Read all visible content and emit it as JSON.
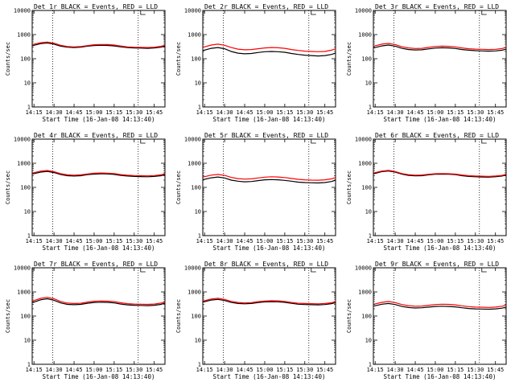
{
  "common": {
    "xlabel": "Start Time (16-Jan-08 14:13:40)",
    "ylabel": "Counts/sec",
    "x_tick_labels": [
      "14:15",
      "14:30",
      "14:45",
      "15:00",
      "15:15",
      "15:30",
      "15:45"
    ],
    "y_tick_labels": [
      "1",
      "10",
      "100",
      "1000",
      "10000"
    ],
    "colors": {
      "events": "#000000",
      "lld": "#ff0000",
      "frame": "#000000"
    }
  },
  "chart_data": [
    {
      "type": "line",
      "title": "Det 1r BLACK = Events, RED = LLD",
      "xlabel": "Start Time (16-Jan-08 14:13:40)",
      "ylabel": "Counts/sec",
      "y_scale": "log",
      "ylim": [
        1,
        10000
      ],
      "xlim": [
        "14:13:40",
        "15:53"
      ],
      "x_ticks": [
        "14:15",
        "14:30",
        "14:45",
        "15:00",
        "15:15",
        "15:30",
        "15:45"
      ],
      "y_ticks": [
        1,
        10,
        100,
        1000,
        10000
      ],
      "vlines": [
        "14:29",
        "15:33"
      ],
      "x": [
        "14:14",
        "14:20",
        "14:25",
        "14:30",
        "14:35",
        "14:40",
        "14:45",
        "14:50",
        "14:55",
        "15:00",
        "15:05",
        "15:10",
        "15:15",
        "15:20",
        "15:25",
        "15:30",
        "15:35",
        "15:40",
        "15:45",
        "15:50",
        "15:53"
      ],
      "series": [
        {
          "name": "Events",
          "values": [
            350,
            420,
            450,
            400,
            330,
            300,
            290,
            300,
            330,
            350,
            360,
            355,
            340,
            310,
            290,
            280,
            275,
            270,
            280,
            300,
            330
          ]
        },
        {
          "name": "LLD",
          "values": [
            390,
            460,
            490,
            440,
            360,
            320,
            310,
            320,
            350,
            380,
            390,
            385,
            370,
            335,
            310,
            300,
            295,
            290,
            300,
            325,
            360
          ]
        }
      ]
    },
    {
      "type": "line",
      "title": "Det 2r BLACK = Events, RED = LLD",
      "xlabel": "Start Time (16-Jan-08 14:13:40)",
      "ylabel": "Counts/sec",
      "y_scale": "log",
      "ylim": [
        1,
        10000
      ],
      "xlim": [
        "14:13:40",
        "15:53"
      ],
      "x_ticks": [
        "14:15",
        "14:30",
        "14:45",
        "15:00",
        "15:15",
        "15:30",
        "15:45"
      ],
      "y_ticks": [
        1,
        10,
        100,
        1000,
        10000
      ],
      "vlines": [
        "14:29",
        "15:33"
      ],
      "x": [
        "14:14",
        "14:20",
        "14:25",
        "14:30",
        "14:35",
        "14:40",
        "14:45",
        "14:50",
        "14:55",
        "15:00",
        "15:05",
        "15:10",
        "15:15",
        "15:20",
        "15:25",
        "15:30",
        "15:35",
        "15:40",
        "15:45",
        "15:50",
        "15:53"
      ],
      "series": [
        {
          "name": "Events",
          "values": [
            220,
            270,
            290,
            260,
            200,
            170,
            160,
            165,
            180,
            195,
            200,
            195,
            185,
            165,
            150,
            140,
            135,
            130,
            135,
            150,
            170
          ]
        },
        {
          "name": "LLD",
          "values": [
            300,
            370,
            400,
            360,
            290,
            250,
            235,
            240,
            260,
            280,
            290,
            285,
            270,
            240,
            220,
            205,
            200,
            195,
            200,
            225,
            260
          ]
        }
      ]
    },
    {
      "type": "line",
      "title": "Det 3r BLACK = Events, RED = LLD",
      "xlabel": "Start Time (16-Jan-08 14:13:40)",
      "ylabel": "Counts/sec",
      "y_scale": "log",
      "ylim": [
        1,
        10000
      ],
      "xlim": [
        "14:13:40",
        "15:53"
      ],
      "x_ticks": [
        "14:15",
        "14:30",
        "14:45",
        "15:00",
        "15:15",
        "15:30",
        "15:45"
      ],
      "y_ticks": [
        1,
        10,
        100,
        1000,
        10000
      ],
      "vlines": [
        "14:29",
        "15:33"
      ],
      "x": [
        "14:14",
        "14:20",
        "14:25",
        "14:30",
        "14:35",
        "14:40",
        "14:45",
        "14:50",
        "14:55",
        "15:00",
        "15:05",
        "15:10",
        "15:15",
        "15:20",
        "15:25",
        "15:30",
        "15:35",
        "15:40",
        "15:45",
        "15:50",
        "15:53"
      ],
      "series": [
        {
          "name": "Events",
          "values": [
            280,
            340,
            370,
            330,
            270,
            240,
            230,
            235,
            255,
            275,
            285,
            280,
            265,
            240,
            225,
            215,
            210,
            205,
            210,
            225,
            250
          ]
        },
        {
          "name": "LLD",
          "values": [
            330,
            400,
            430,
            385,
            315,
            280,
            265,
            270,
            295,
            320,
            330,
            325,
            310,
            280,
            260,
            250,
            245,
            240,
            245,
            265,
            295
          ]
        }
      ]
    },
    {
      "type": "line",
      "title": "Det 4r BLACK = Events, RED = LLD",
      "xlabel": "Start Time (16-Jan-08 14:13:40)",
      "ylabel": "Counts/sec",
      "y_scale": "log",
      "ylim": [
        1,
        10000
      ],
      "xlim": [
        "14:13:40",
        "15:53"
      ],
      "x_ticks": [
        "14:15",
        "14:30",
        "14:45",
        "15:00",
        "15:15",
        "15:30",
        "15:45"
      ],
      "y_ticks": [
        1,
        10,
        100,
        1000,
        10000
      ],
      "vlines": [
        "14:29",
        "15:33"
      ],
      "x": [
        "14:14",
        "14:20",
        "14:25",
        "14:30",
        "14:35",
        "14:40",
        "14:45",
        "14:50",
        "14:55",
        "15:00",
        "15:05",
        "15:10",
        "15:15",
        "15:20",
        "15:25",
        "15:30",
        "15:35",
        "15:40",
        "15:45",
        "15:50",
        "15:53"
      ],
      "series": [
        {
          "name": "Events",
          "values": [
            360,
            430,
            460,
            410,
            340,
            305,
            295,
            305,
            335,
            355,
            365,
            360,
            345,
            315,
            295,
            285,
            280,
            275,
            285,
            305,
            335
          ]
        },
        {
          "name": "LLD",
          "values": [
            395,
            470,
            500,
            450,
            370,
            330,
            320,
            330,
            360,
            385,
            395,
            390,
            375,
            340,
            320,
            310,
            305,
            300,
            310,
            330,
            365
          ]
        }
      ]
    },
    {
      "type": "line",
      "title": "Det 5r BLACK = Events, RED = LLD",
      "xlabel": "Start Time (16-Jan-08 14:13:40)",
      "ylabel": "Counts/sec",
      "y_scale": "log",
      "ylim": [
        1,
        10000
      ],
      "xlim": [
        "14:13:40",
        "15:53"
      ],
      "x_ticks": [
        "14:15",
        "14:30",
        "14:45",
        "15:00",
        "15:15",
        "15:30",
        "15:45"
      ],
      "y_ticks": [
        1,
        10,
        100,
        1000,
        10000
      ],
      "vlines": [
        "14:29",
        "15:33"
      ],
      "x": [
        "14:14",
        "14:20",
        "14:25",
        "14:30",
        "14:35",
        "14:40",
        "14:45",
        "14:50",
        "14:55",
        "15:00",
        "15:05",
        "15:10",
        "15:15",
        "15:20",
        "15:25",
        "15:30",
        "15:35",
        "15:40",
        "15:45",
        "15:50",
        "15:53"
      ],
      "series": [
        {
          "name": "Events",
          "values": [
            210,
            250,
            270,
            245,
            200,
            180,
            170,
            175,
            190,
            205,
            210,
            205,
            195,
            180,
            165,
            158,
            155,
            152,
            158,
            175,
            200
          ]
        },
        {
          "name": "LLD",
          "values": [
            270,
            320,
            345,
            315,
            260,
            230,
            220,
            225,
            245,
            265,
            275,
            270,
            255,
            235,
            215,
            205,
            200,
            198,
            205,
            225,
            255
          ]
        }
      ]
    },
    {
      "type": "line",
      "title": "Det 6r BLACK = Events, RED = LLD",
      "xlabel": "Start Time (16-Jan-08 14:13:40)",
      "ylabel": "Counts/sec",
      "y_scale": "log",
      "ylim": [
        1,
        10000
      ],
      "xlim": [
        "14:13:40",
        "15:53"
      ],
      "x_ticks": [
        "14:15",
        "14:30",
        "14:45",
        "15:00",
        "15:15",
        "15:30",
        "15:45"
      ],
      "y_ticks": [
        1,
        10,
        100,
        1000,
        10000
      ],
      "vlines": [
        "14:29",
        "15:33"
      ],
      "x": [
        "14:14",
        "14:20",
        "14:25",
        "14:30",
        "14:35",
        "14:40",
        "14:45",
        "14:50",
        "14:55",
        "15:00",
        "15:05",
        "15:10",
        "15:15",
        "15:20",
        "15:25",
        "15:30",
        "15:35",
        "15:40",
        "15:45",
        "15:50",
        "15:53"
      ],
      "series": [
        {
          "name": "Events",
          "values": [
            370,
            450,
            480,
            430,
            355,
            315,
            300,
            305,
            330,
            350,
            355,
            350,
            335,
            305,
            285,
            275,
            270,
            265,
            275,
            295,
            330
          ]
        },
        {
          "name": "LLD",
          "values": [
            395,
            475,
            505,
            455,
            375,
            335,
            320,
            325,
            350,
            370,
            375,
            370,
            355,
            325,
            305,
            295,
            290,
            285,
            295,
            315,
            350
          ]
        }
      ]
    },
    {
      "type": "line",
      "title": "Det 7r BLACK = Events, RED = LLD",
      "xlabel": "Start Time (16-Jan-08 14:13:40)",
      "ylabel": "Counts/sec",
      "y_scale": "log",
      "ylim": [
        1,
        10000
      ],
      "xlim": [
        "14:13:40",
        "15:53"
      ],
      "x_ticks": [
        "14:15",
        "14:30",
        "14:45",
        "15:00",
        "15:15",
        "15:30",
        "15:45"
      ],
      "y_ticks": [
        1,
        10,
        100,
        1000,
        10000
      ],
      "vlines": [
        "14:29",
        "15:33"
      ],
      "x": [
        "14:14",
        "14:20",
        "14:25",
        "14:30",
        "14:35",
        "14:40",
        "14:45",
        "14:50",
        "14:55",
        "15:00",
        "15:05",
        "15:10",
        "15:15",
        "15:20",
        "15:25",
        "15:30",
        "15:35",
        "15:40",
        "15:45",
        "15:50",
        "15:53"
      ],
      "series": [
        {
          "name": "Events",
          "values": [
            360,
            470,
            520,
            450,
            350,
            305,
            295,
            305,
            340,
            365,
            375,
            370,
            350,
            315,
            290,
            280,
            275,
            270,
            280,
            305,
            345
          ]
        },
        {
          "name": "LLD",
          "values": [
            420,
            540,
            600,
            520,
            400,
            345,
            330,
            340,
            380,
            410,
            420,
            415,
            395,
            355,
            325,
            315,
            310,
            305,
            315,
            345,
            390
          ]
        }
      ]
    },
    {
      "type": "line",
      "title": "Det 8r BLACK = Events, RED = LLD",
      "xlabel": "Start Time (16-Jan-08 14:13:40)",
      "ylabel": "Counts/sec",
      "y_scale": "log",
      "ylim": [
        1,
        10000
      ],
      "xlim": [
        "14:13:40",
        "15:53"
      ],
      "x_ticks": [
        "14:15",
        "14:30",
        "14:45",
        "15:00",
        "15:15",
        "15:30",
        "15:45"
      ],
      "y_ticks": [
        1,
        10,
        100,
        1000,
        10000
      ],
      "vlines": [
        "14:29",
        "15:33"
      ],
      "x": [
        "14:14",
        "14:20",
        "14:25",
        "14:30",
        "14:35",
        "14:40",
        "14:45",
        "14:50",
        "14:55",
        "15:00",
        "15:05",
        "15:10",
        "15:15",
        "15:20",
        "15:25",
        "15:30",
        "15:35",
        "15:40",
        "15:45",
        "15:50",
        "15:53"
      ],
      "series": [
        {
          "name": "Events",
          "values": [
            380,
            460,
            490,
            440,
            365,
            330,
            320,
            330,
            360,
            385,
            395,
            390,
            370,
            335,
            310,
            300,
            295,
            290,
            300,
            325,
            360
          ]
        },
        {
          "name": "LLD",
          "values": [
            420,
            510,
            545,
            490,
            405,
            365,
            350,
            360,
            395,
            420,
            430,
            425,
            405,
            365,
            340,
            330,
            325,
            320,
            330,
            355,
            395
          ]
        }
      ]
    },
    {
      "type": "line",
      "title": "Det 9r BLACK = Events, RED = LLD",
      "xlabel": "Start Time (16-Jan-08 14:13:40)",
      "ylabel": "Counts/sec",
      "y_scale": "log",
      "ylim": [
        1,
        10000
      ],
      "xlim": [
        "14:13:40",
        "15:53"
      ],
      "x_ticks": [
        "14:15",
        "14:30",
        "14:45",
        "15:00",
        "15:15",
        "15:30",
        "15:45"
      ],
      "y_ticks": [
        1,
        10,
        100,
        1000,
        10000
      ],
      "vlines": [
        "14:29",
        "15:33"
      ],
      "x": [
        "14:14",
        "14:20",
        "14:25",
        "14:30",
        "14:35",
        "14:40",
        "14:45",
        "14:50",
        "14:55",
        "15:00",
        "15:05",
        "15:10",
        "15:15",
        "15:20",
        "15:25",
        "15:30",
        "15:35",
        "15:40",
        "15:45",
        "15:50",
        "15:53"
      ],
      "series": [
        {
          "name": "Events",
          "values": [
            260,
            310,
            330,
            300,
            250,
            225,
            215,
            220,
            235,
            250,
            255,
            250,
            240,
            220,
            205,
            198,
            195,
            192,
            198,
            212,
            235
          ]
        },
        {
          "name": "LLD",
          "values": [
            310,
            370,
            400,
            360,
            300,
            270,
            255,
            260,
            280,
            300,
            310,
            305,
            290,
            265,
            245,
            235,
            232,
            228,
            235,
            255,
            285
          ]
        }
      ]
    }
  ]
}
